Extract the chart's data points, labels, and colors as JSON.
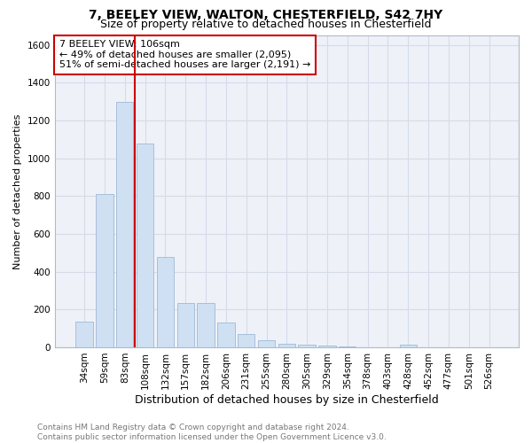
{
  "title": "7, BEELEY VIEW, WALTON, CHESTERFIELD, S42 7HY",
  "subtitle": "Size of property relative to detached houses in Chesterfield",
  "xlabel": "Distribution of detached houses by size in Chesterfield",
  "ylabel": "Number of detached properties",
  "categories": [
    "34sqm",
    "59sqm",
    "83sqm",
    "108sqm",
    "132sqm",
    "157sqm",
    "182sqm",
    "206sqm",
    "231sqm",
    "255sqm",
    "280sqm",
    "305sqm",
    "329sqm",
    "354sqm",
    "378sqm",
    "403sqm",
    "428sqm",
    "452sqm",
    "477sqm",
    "501sqm",
    "526sqm"
  ],
  "values": [
    135,
    810,
    1300,
    1080,
    480,
    235,
    235,
    130,
    70,
    35,
    20,
    15,
    10,
    5,
    2,
    2,
    15,
    2,
    2,
    2,
    2
  ],
  "bar_color": "#cfe0f2",
  "bar_edge_color": "#a0b8d8",
  "vline_x_index": 3,
  "vline_color": "#cc0000",
  "annotation_line1": "7 BEELEY VIEW: 106sqm",
  "annotation_line2": "← 49% of detached houses are smaller (2,095)",
  "annotation_line3": "51% of semi-detached houses are larger (2,191) →",
  "annotation_box_color": "#ffffff",
  "annotation_box_edge": "#cc0000",
  "ylim": [
    0,
    1650
  ],
  "yticks": [
    0,
    200,
    400,
    600,
    800,
    1000,
    1200,
    1400,
    1600
  ],
  "grid_color": "#d4dce8",
  "bg_color": "#eef2f8",
  "footer_text": "Contains HM Land Registry data © Crown copyright and database right 2024.\nContains public sector information licensed under the Open Government Licence v3.0.",
  "title_fontsize": 10,
  "subtitle_fontsize": 9,
  "xlabel_fontsize": 9,
  "ylabel_fontsize": 8,
  "tick_fontsize": 7.5,
  "annotation_fontsize": 8,
  "footer_fontsize": 6.5
}
